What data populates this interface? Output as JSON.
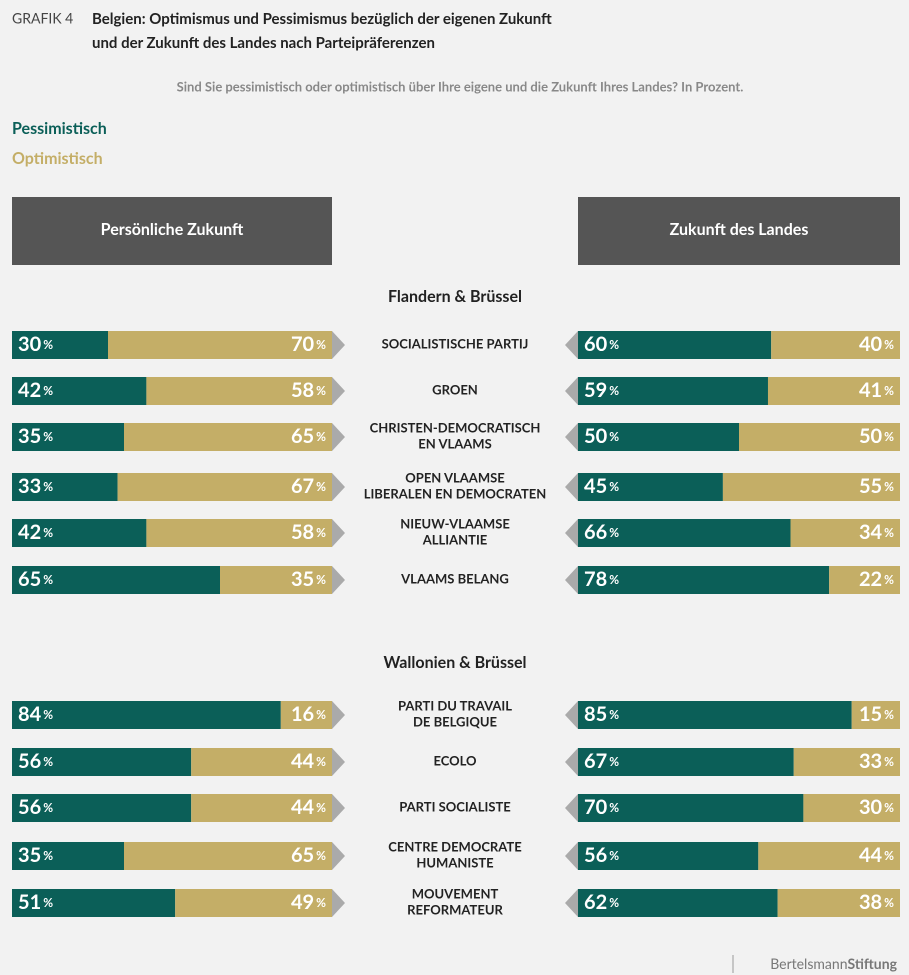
{
  "chart_data": {
    "type": "bar",
    "label": "GRAFIK 4",
    "title": [
      "Belgien: Optimismus und Pessimismus bezüglich der eigenen Zukunft",
      "und der Zukunft des Landes nach Parteipräferenzen"
    ],
    "subtitle": "Sind Sie pessimistisch oder optimistisch über Ihre eigene und die Zukunft Ihres Landes? In Prozent.",
    "series": [
      {
        "name": "Pessimistisch",
        "color": "#0b5f58"
      },
      {
        "name": "Optimistisch",
        "color": "#c4ae67"
      }
    ],
    "panels": [
      "Persönliche Zukunft",
      "Zukunft des Landes"
    ],
    "unit": "%",
    "xlim": [
      0,
      100
    ],
    "groups": [
      {
        "name": "Flandern & Brüssel",
        "categories": [
          [
            "SOCIALISTISCHE PARTIJ"
          ],
          [
            "GROEN"
          ],
          [
            "CHRISTEN-DEMOCRATISCH",
            "EN VLAAMS"
          ],
          [
            "OPEN VLAAMSE",
            "LIBERALEN EN DEMOCRATEN"
          ],
          [
            "NIEUW-VLAAMSE",
            "ALLIANTIE"
          ],
          [
            "VLAAMS BELANG"
          ]
        ],
        "personal": [
          [
            30,
            42,
            35,
            33,
            42,
            65
          ],
          [
            70,
            58,
            65,
            67,
            58,
            35
          ]
        ],
        "country": [
          [
            60,
            59,
            50,
            45,
            66,
            78
          ],
          [
            40,
            41,
            50,
            55,
            34,
            22
          ]
        ]
      },
      {
        "name": "Wallonien & Brüssel",
        "categories": [
          [
            "PARTI DU TRAVAIL",
            "DE BELGIQUE"
          ],
          [
            "ECOLO"
          ],
          [
            "PARTI SOCIALISTE"
          ],
          [
            "CENTRE DEMOCRATE",
            "HUMANISTE"
          ],
          [
            "MOUVEMENT",
            "REFORMATEUR"
          ]
        ],
        "personal": [
          [
            84,
            56,
            56,
            35,
            51
          ],
          [
            16,
            44,
            44,
            65,
            49
          ]
        ],
        "country": [
          [
            85,
            67,
            70,
            56,
            62
          ],
          [
            15,
            33,
            30,
            44,
            38
          ]
        ]
      }
    ],
    "source": [
      "Bertelsmann",
      "Stiftung"
    ]
  }
}
